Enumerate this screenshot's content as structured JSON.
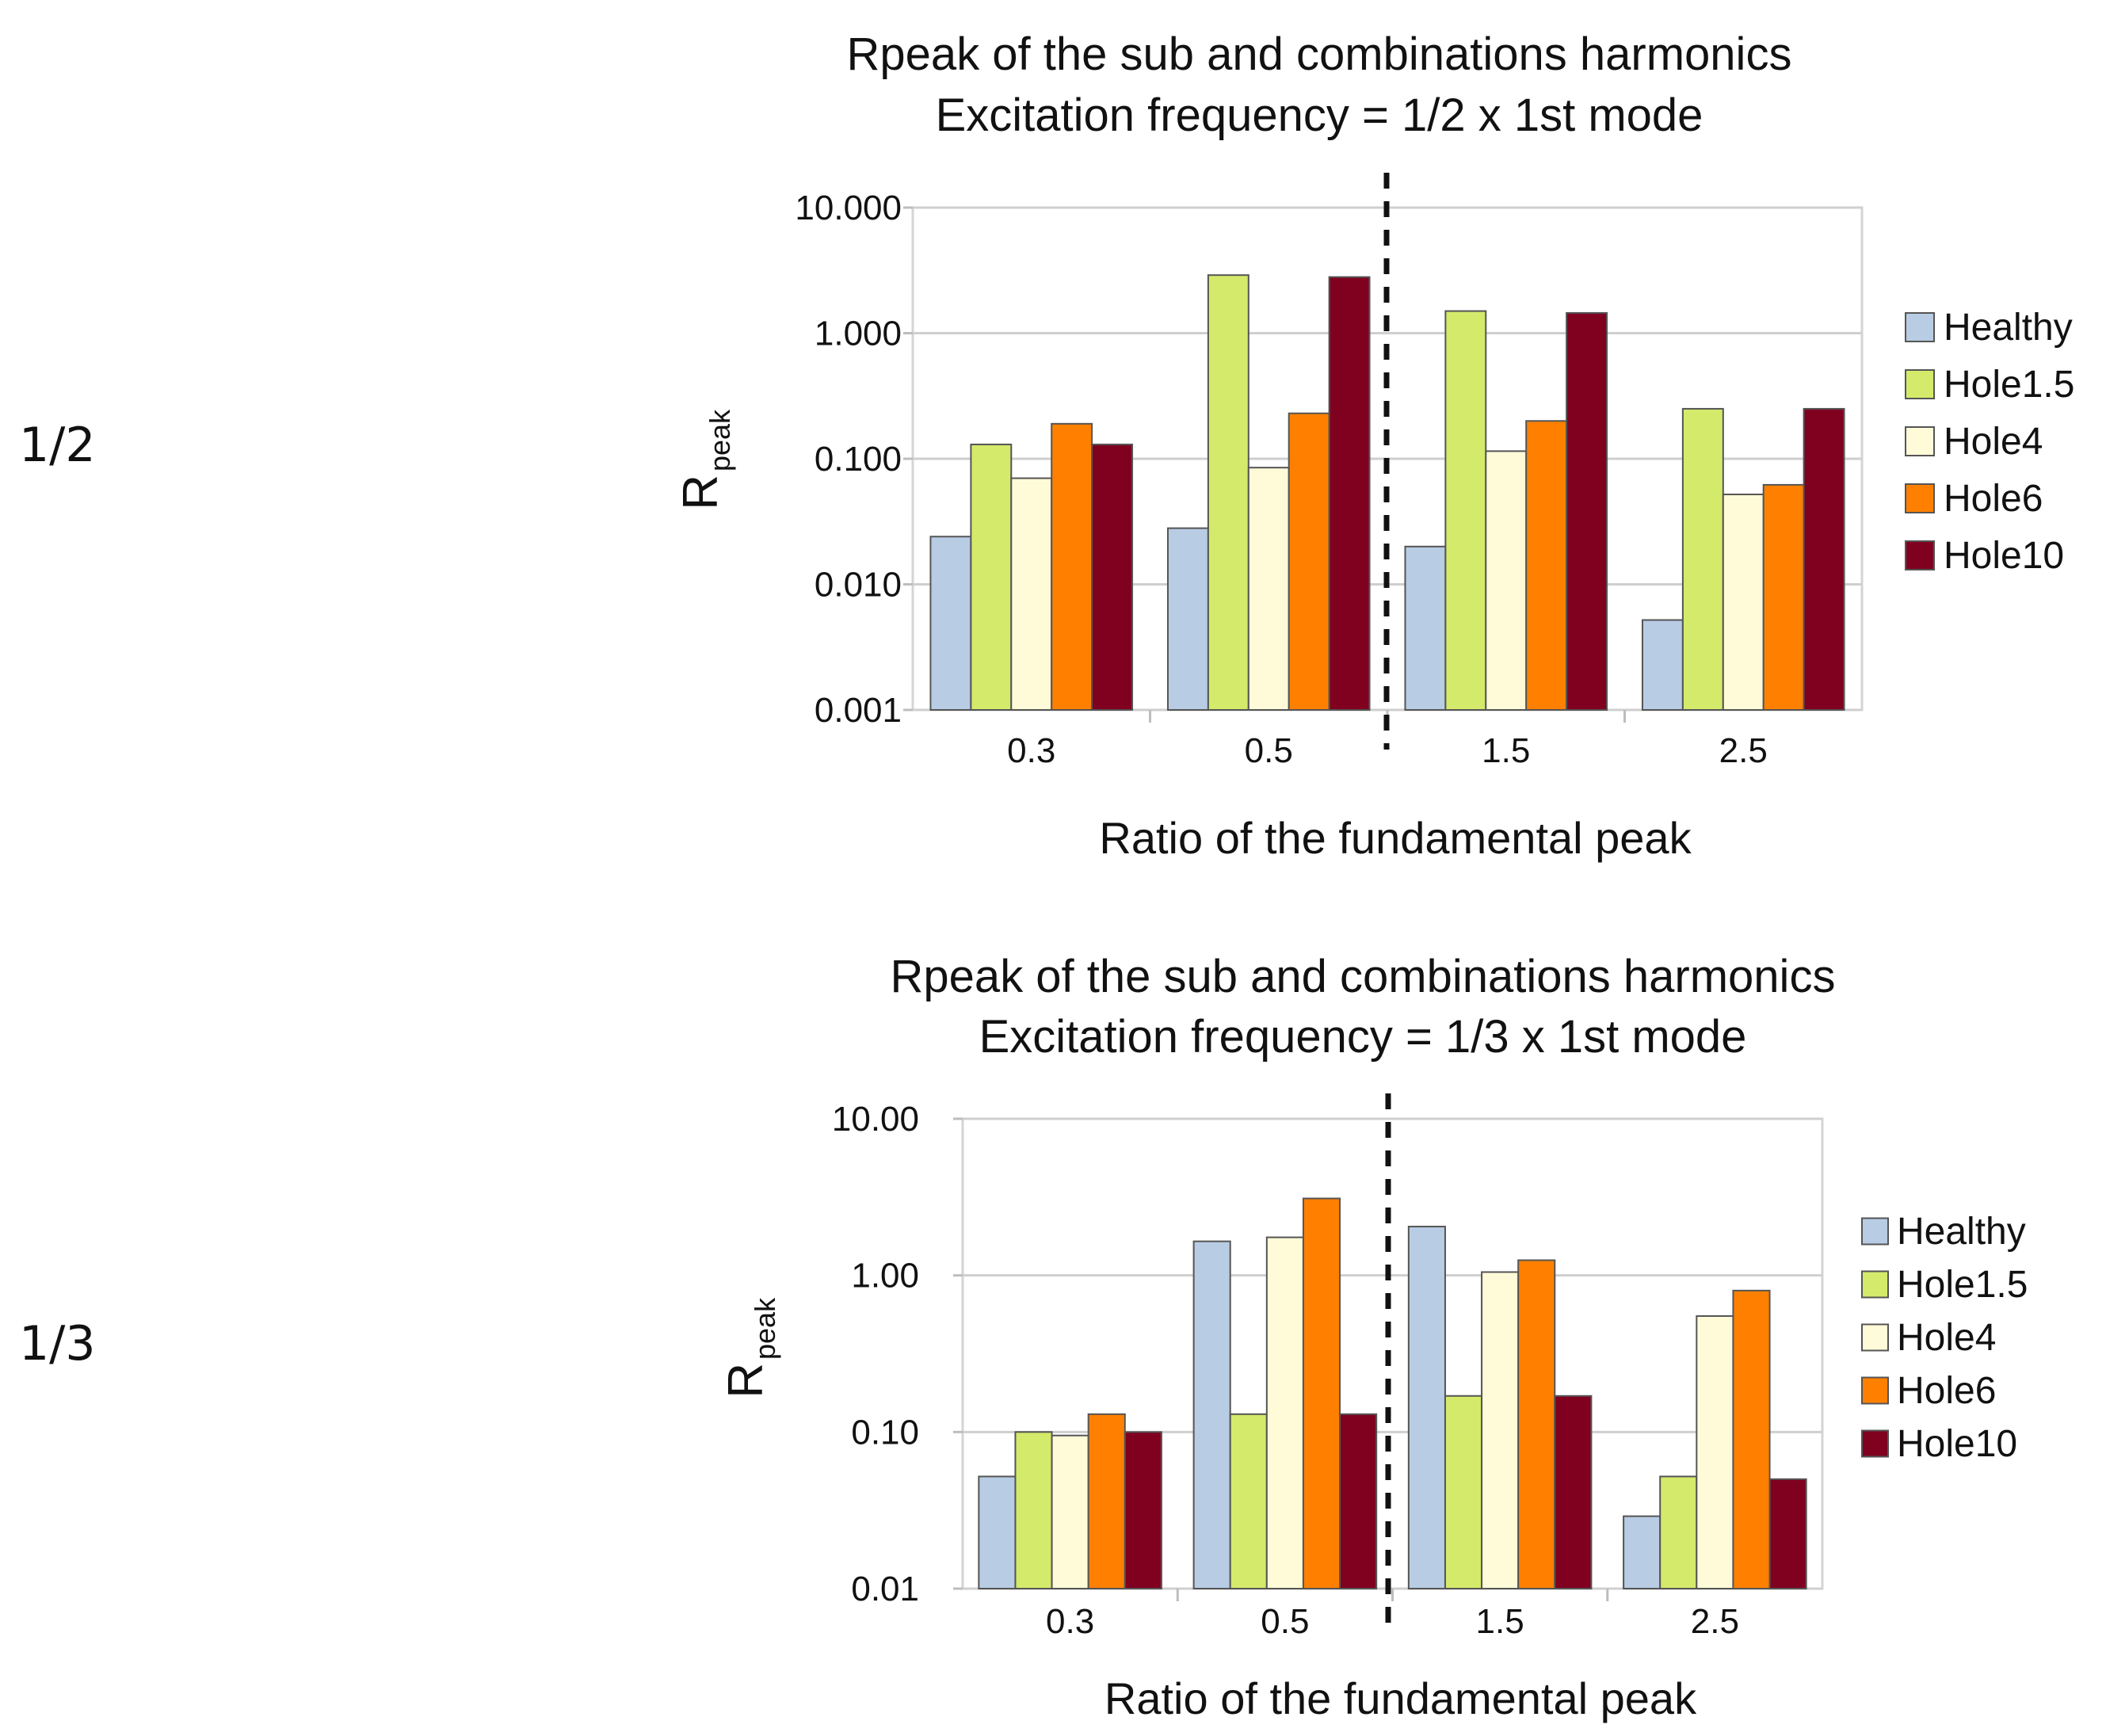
{
  "side_labels": [
    "1/2",
    "1/3"
  ],
  "colors": {
    "Healthy": "#b8cce4",
    "Hole1.5": "#d4ea6b",
    "Hole4": "#fffbd9",
    "Hole6": "#ff8000",
    "Hole10": "#800020"
  },
  "chart_data": [
    {
      "type": "bar",
      "title": [
        "Rpeak of the sub and combinations harmonics",
        "Excitation frequency = 1/2 x 1st mode"
      ],
      "xlabel": "Ratio of the fundamental peak",
      "ylabel_main": "R",
      "ylabel_sub": "peak",
      "yscale": "log",
      "ylim": [
        0.001,
        10
      ],
      "yticks": [
        0.001,
        0.01,
        0.1,
        1,
        10
      ],
      "ytick_labels": [
        "0.001",
        "0.010",
        "0.100",
        "1.000",
        "10.000"
      ],
      "grid": true,
      "divider_after_category": 1,
      "legend_position": "right",
      "categories": [
        "0.3",
        "0.5",
        "1.5",
        "2.5"
      ],
      "series": [
        {
          "name": "Healthy",
          "values": [
            0.024,
            0.028,
            0.02,
            0.0052
          ]
        },
        {
          "name": "Hole1.5",
          "values": [
            0.13,
            2.9,
            1.5,
            0.25
          ]
        },
        {
          "name": "Hole4",
          "values": [
            0.07,
            0.085,
            0.115,
            0.052
          ]
        },
        {
          "name": "Hole6",
          "values": [
            0.19,
            0.23,
            0.2,
            0.062
          ]
        },
        {
          "name": "Hole10",
          "values": [
            0.13,
            2.8,
            1.45,
            0.25
          ]
        }
      ]
    },
    {
      "type": "bar",
      "title": [
        "Rpeak of the sub and combinations harmonics",
        "Excitation frequency = 1/3 x 1st mode"
      ],
      "xlabel": "Ratio of the fundamental peak",
      "ylabel_main": "R",
      "ylabel_sub": "peak",
      "yscale": "log",
      "ylim": [
        0.01,
        10
      ],
      "yticks": [
        0.01,
        0.1,
        1,
        10
      ],
      "ytick_labels": [
        "0.01",
        "0.10",
        "1.00",
        "10.00"
      ],
      "grid": true,
      "divider_after_category": 1,
      "legend_position": "right",
      "categories": [
        "0.3",
        "0.5",
        "1.5",
        "2.5"
      ],
      "series": [
        {
          "name": "Healthy",
          "values": [
            0.052,
            1.65,
            2.05,
            0.029
          ]
        },
        {
          "name": "Hole1.5",
          "values": [
            0.1,
            0.13,
            0.17,
            0.052
          ]
        },
        {
          "name": "Hole4",
          "values": [
            0.095,
            1.75,
            1.05,
            0.55
          ]
        },
        {
          "name": "Hole6",
          "values": [
            0.13,
            3.1,
            1.25,
            0.8
          ]
        },
        {
          "name": "Hole10",
          "values": [
            0.1,
            0.13,
            0.17,
            0.05
          ]
        }
      ]
    }
  ]
}
